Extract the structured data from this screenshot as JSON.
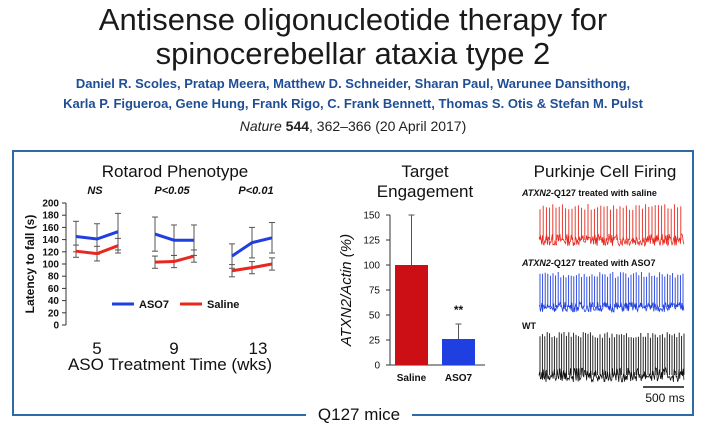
{
  "title_line1": "Antisense oligonucleotide therapy for",
  "title_line2": "spinocerebellar ataxia type 2",
  "authors_line1": "Daniel R. Scoles, Pratap Meera, Matthew D. Schneider, Sharan Paul, Warunee Dansithong,",
  "authors_line2": "Karla P. Figueroa, Gene Hung, Frank Rigo, C. Frank Bennett, Thomas S. Otis & Stefan M. Pulst",
  "citation": {
    "journal": "Nature",
    "volume": "544",
    "pages": ", 362–366",
    "date": " (20 April 2017)"
  },
  "frame_color": "#2e6aa8",
  "caption": "Q127 mice",
  "chart_data": [
    {
      "type": "line",
      "title": "Rotarod Phenotype",
      "xlabel": "ASO Treatment Time (wks)",
      "ylabel": "Latency to fall (s)",
      "ylim": [
        0,
        200
      ],
      "yticks": [
        "0",
        "20",
        "40",
        "60",
        "80",
        "100",
        "120",
        "140",
        "160",
        "180",
        "200"
      ],
      "group_labels": [
        "5",
        "9",
        "13"
      ],
      "significance": [
        "NS",
        "P<0.05",
        "P<0.01"
      ],
      "legend": "center",
      "series": [
        {
          "name": "ASO7",
          "color": "#1f3fe0",
          "groups": [
            [
              145,
              141,
              153
            ],
            [
              149,
              139,
              139
            ],
            [
              113,
              135,
              143
            ]
          ],
          "err": [
            [
              25,
              25,
              30
            ],
            [
              28,
              25,
              25
            ],
            [
              20,
              25,
              25
            ]
          ]
        },
        {
          "name": "Saline",
          "color": "#e8281e",
          "groups": [
            [
              121,
              117,
              130
            ],
            [
              103,
              104,
              113
            ],
            [
              89,
              94,
              100
            ]
          ],
          "err": [
            [
              10,
              12,
              12
            ],
            [
              10,
              10,
              10
            ],
            [
              10,
              10,
              10
            ]
          ]
        }
      ]
    },
    {
      "type": "bar",
      "title": "Target Engagement",
      "ylabel": "ATXN2/Actin (%)",
      "categories": [
        "Saline",
        "ASO7"
      ],
      "values": [
        100,
        26
      ],
      "errors": [
        50,
        15
      ],
      "colors": [
        "#cc0f14",
        "#1f3fe0"
      ],
      "ylim": [
        0,
        150
      ],
      "yticks": [
        "0",
        "25",
        "50",
        "75",
        "100",
        "125",
        "150"
      ],
      "annotation": "**"
    }
  ],
  "traces": {
    "title": "Purkinje Cell Firing",
    "items": [
      {
        "bold": "ATXN2",
        "label": "-Q127 treated with saline",
        "color": "#e8281e"
      },
      {
        "bold": "ATXN2",
        "label": "-Q127 treated with ASO7",
        "color": "#1f3fe0"
      },
      {
        "bold": "",
        "label": "WT",
        "color": "#111111"
      }
    ],
    "scale_label": "500 ms"
  }
}
